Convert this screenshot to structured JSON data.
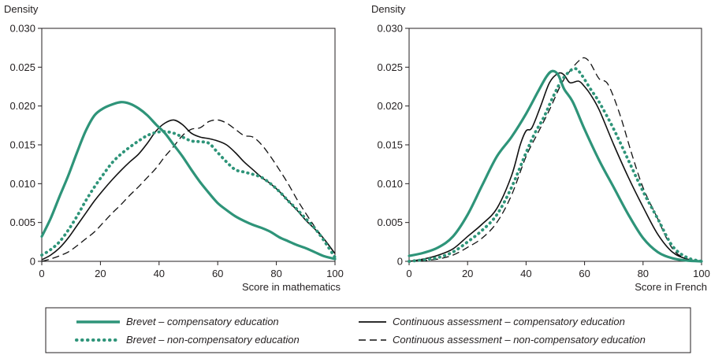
{
  "chart_data": [
    {
      "type": "line",
      "ylabel": "Density",
      "xlabel": "Score in mathematics",
      "xlim": [
        0,
        100
      ],
      "ylim": [
        0,
        0.03
      ],
      "xticks": [
        "0",
        "20",
        "40",
        "60",
        "80",
        "100"
      ],
      "yticks": [
        "0",
        "0.005",
        "0.010",
        "0.015",
        "0.020",
        "0.025",
        "0.030"
      ],
      "grid": false,
      "series": [
        {
          "name": "Brevet – compensatory education",
          "x": [
            0,
            3,
            6,
            9,
            12,
            15,
            18,
            21,
            24,
            27,
            30,
            33,
            36,
            39,
            42,
            45,
            48,
            51,
            54,
            57,
            60,
            63,
            66,
            69,
            72,
            75,
            78,
            81,
            84,
            87,
            90,
            93,
            96,
            100
          ],
          "y": [
            0.0032,
            0.0055,
            0.0083,
            0.011,
            0.014,
            0.0168,
            0.0188,
            0.0197,
            0.0202,
            0.0205,
            0.0203,
            0.0197,
            0.0188,
            0.0176,
            0.0165,
            0.015,
            0.0135,
            0.0118,
            0.0102,
            0.0088,
            0.0075,
            0.0066,
            0.0058,
            0.0052,
            0.0047,
            0.0043,
            0.0038,
            0.0031,
            0.0026,
            0.0021,
            0.0017,
            0.0012,
            0.0007,
            0.0003
          ]
        },
        {
          "name": "Brevet – non-compensatory education",
          "x": [
            0,
            3,
            6,
            9,
            12,
            15,
            18,
            21,
            24,
            27,
            30,
            33,
            36,
            39,
            42,
            45,
            48,
            51,
            54,
            57,
            60,
            63,
            66,
            69,
            72,
            75,
            78,
            81,
            84,
            87,
            90,
            93,
            96,
            100
          ],
          "y": [
            0.0008,
            0.0015,
            0.0025,
            0.004,
            0.0058,
            0.0078,
            0.0096,
            0.0112,
            0.0127,
            0.0138,
            0.0147,
            0.0155,
            0.0162,
            0.0166,
            0.0167,
            0.0165,
            0.016,
            0.0155,
            0.0154,
            0.0152,
            0.014,
            0.0128,
            0.0118,
            0.0115,
            0.0112,
            0.0108,
            0.01,
            0.009,
            0.0078,
            0.0067,
            0.0055,
            0.0043,
            0.0028,
            0.0005
          ]
        },
        {
          "name": "Continuous assessment – compensatory education",
          "x": [
            0,
            3,
            6,
            9,
            12,
            15,
            18,
            21,
            24,
            27,
            30,
            33,
            36,
            39,
            42,
            45,
            48,
            51,
            54,
            57,
            60,
            63,
            66,
            69,
            72,
            75,
            78,
            81,
            84,
            87,
            90,
            93,
            96,
            100
          ],
          "y": [
            0.0002,
            0.0008,
            0.0017,
            0.003,
            0.0046,
            0.0062,
            0.0078,
            0.0092,
            0.0105,
            0.0117,
            0.0128,
            0.0138,
            0.0152,
            0.0168,
            0.0178,
            0.0182,
            0.0176,
            0.0165,
            0.016,
            0.0158,
            0.0155,
            0.015,
            0.014,
            0.0128,
            0.0118,
            0.0108,
            0.01,
            0.009,
            0.0078,
            0.0066,
            0.0053,
            0.0042,
            0.003,
            0.001
          ]
        },
        {
          "name": "Continuous assessment – non-compensatory education",
          "x": [
            0,
            3,
            6,
            9,
            12,
            15,
            18,
            21,
            24,
            27,
            30,
            33,
            36,
            39,
            42,
            45,
            48,
            51,
            54,
            57,
            60,
            63,
            66,
            69,
            72,
            75,
            78,
            81,
            84,
            87,
            90,
            93,
            96,
            100
          ],
          "y": [
            0.0,
            0.0003,
            0.0007,
            0.0012,
            0.002,
            0.0029,
            0.0038,
            0.005,
            0.0062,
            0.0073,
            0.0085,
            0.0096,
            0.0108,
            0.012,
            0.0135,
            0.0148,
            0.0162,
            0.017,
            0.0172,
            0.018,
            0.0182,
            0.0178,
            0.017,
            0.0162,
            0.016,
            0.015,
            0.0135,
            0.0118,
            0.01,
            0.008,
            0.0062,
            0.0045,
            0.003,
            0.001
          ]
        }
      ]
    },
    {
      "type": "line",
      "ylabel": "Density",
      "xlabel": "Score in French",
      "xlim": [
        0,
        100
      ],
      "ylim": [
        0,
        0.03
      ],
      "xticks": [
        "0",
        "20",
        "40",
        "60",
        "80",
        "100"
      ],
      "yticks": [
        "0",
        "0.005",
        "0.010",
        "0.015",
        "0.020",
        "0.025",
        "0.030"
      ],
      "grid": false,
      "series": [
        {
          "name": "Brevet – compensatory education",
          "x": [
            0,
            5,
            10,
            15,
            20,
            25,
            30,
            35,
            40,
            44,
            47,
            49,
            51,
            53,
            56,
            60,
            65,
            70,
            75,
            80,
            85,
            90,
            95,
            100
          ],
          "y": [
            0.0007,
            0.0011,
            0.0018,
            0.0032,
            0.006,
            0.0098,
            0.0135,
            0.016,
            0.019,
            0.0218,
            0.0238,
            0.0245,
            0.024,
            0.0222,
            0.0205,
            0.017,
            0.013,
            0.0095,
            0.006,
            0.003,
            0.0012,
            0.0004,
            0.0001,
            0.0
          ]
        },
        {
          "name": "Brevet – non-compensatory education",
          "x": [
            0,
            5,
            10,
            15,
            20,
            25,
            30,
            35,
            40,
            43,
            46,
            49,
            52,
            55,
            57,
            59,
            62,
            65,
            70,
            75,
            80,
            85,
            90,
            95,
            100
          ],
          "y": [
            0.0,
            0.0002,
            0.0005,
            0.0012,
            0.0025,
            0.004,
            0.006,
            0.0095,
            0.014,
            0.0165,
            0.0185,
            0.021,
            0.0232,
            0.0245,
            0.0248,
            0.024,
            0.0222,
            0.0205,
            0.017,
            0.013,
            0.009,
            0.0055,
            0.002,
            0.0005,
            0.0
          ]
        },
        {
          "name": "Continuous assessment – compensatory education",
          "x": [
            0,
            5,
            10,
            15,
            20,
            25,
            30,
            35,
            38,
            40,
            42,
            45,
            48,
            51,
            53,
            55,
            58,
            60,
            62,
            65,
            70,
            75,
            80,
            85,
            90,
            95,
            100
          ],
          "y": [
            0.0,
            0.0003,
            0.0008,
            0.0016,
            0.0032,
            0.0048,
            0.0068,
            0.011,
            0.015,
            0.0168,
            0.0172,
            0.02,
            0.023,
            0.0242,
            0.024,
            0.023,
            0.0232,
            0.0225,
            0.0215,
            0.0195,
            0.015,
            0.0108,
            0.007,
            0.0035,
            0.0012,
            0.0003,
            0.0
          ]
        },
        {
          "name": "Continuous assessment – non-compensatory education",
          "x": [
            0,
            5,
            10,
            15,
            20,
            25,
            30,
            35,
            40,
            44,
            48,
            52,
            55,
            58,
            60,
            62,
            65,
            68,
            72,
            76,
            80,
            85,
            88,
            91,
            95,
            100
          ],
          "y": [
            0.0,
            0.0001,
            0.0003,
            0.0008,
            0.0018,
            0.003,
            0.005,
            0.0085,
            0.0135,
            0.0165,
            0.0195,
            0.0228,
            0.0245,
            0.0258,
            0.0262,
            0.0255,
            0.0235,
            0.0228,
            0.019,
            0.014,
            0.0095,
            0.0055,
            0.003,
            0.0012,
            0.0003,
            0.0
          ]
        }
      ]
    }
  ],
  "legend": {
    "items": [
      {
        "label": "Brevet – compensatory education",
        "style": "solid-thick",
        "color": "#2e9479"
      },
      {
        "label": "Continuous assessment – compensatory education",
        "style": "solid",
        "color": "#111111"
      },
      {
        "label": "Brevet – non-compensatory education",
        "style": "dotted",
        "color": "#2e9479"
      },
      {
        "label": "Continuous assessment – non-compensatory education",
        "style": "dashed",
        "color": "#111111"
      }
    ]
  },
  "colors": {
    "brevet": "#2e9479",
    "continuous": "#111111",
    "axis": "#231f20"
  }
}
